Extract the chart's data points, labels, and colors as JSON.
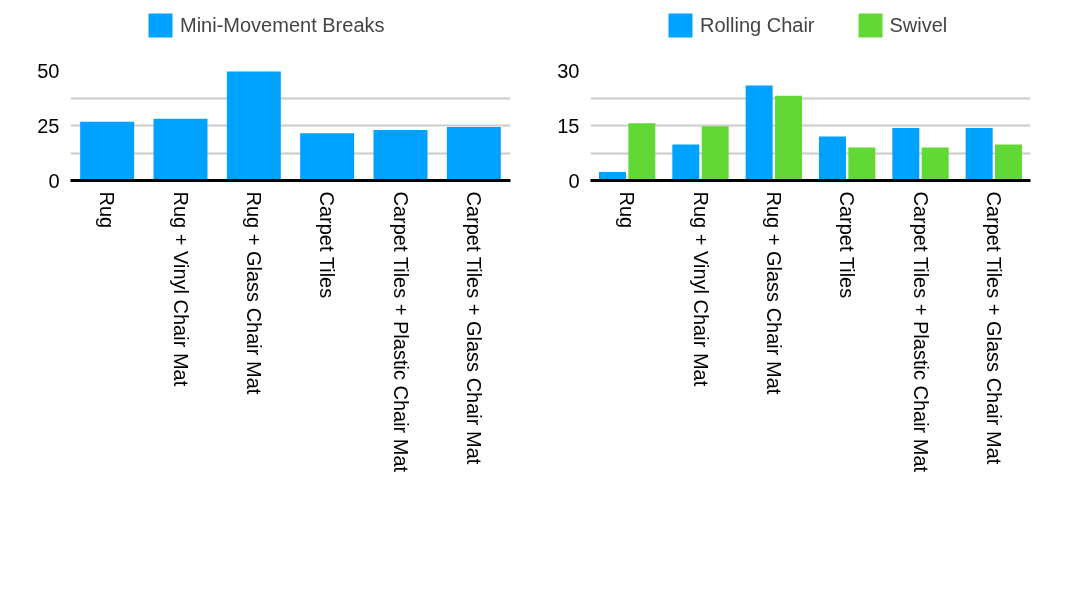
{
  "chart_data": [
    {
      "type": "bar",
      "categories": [
        "Rug",
        "Rug + Vinyl Chair Mat",
        "Rug + Glass Chair Mat",
        "Carpet Tiles",
        "Carpet Tiles + Plastic Chair Mat",
        "Carpet Tiles + Glass Chair Mat"
      ],
      "series": [
        {
          "name": "Mini-Movement Breaks",
          "color": "#00a2ff",
          "values": [
            26.7,
            28.1,
            49.5,
            21.5,
            22.9,
            24.3
          ]
        }
      ],
      "ylim": [
        0,
        50
      ],
      "yticks": [
        0,
        {
          "value": 12.5,
          "label": null
        },
        25,
        {
          "value": 37.5,
          "label": null
        },
        50
      ],
      "grid": "y",
      "legend": "top left"
    },
    {
      "type": "bar",
      "categories": [
        "Rug",
        "Rug + Vinyl Chair Mat",
        "Rug + Glass Chair Mat",
        "Carpet Tiles",
        "Carpet Tiles + Plastic Chair Mat",
        "Carpet Tiles + Glass Chair Mat"
      ],
      "series": [
        {
          "name": "Rolling Chair",
          "color": "#00a2ff",
          "values": [
            2.3,
            9.8,
            25.9,
            12.0,
            14.3,
            14.3
          ]
        },
        {
          "name": "Swivel",
          "color": "#62d836",
          "values": [
            15.6,
            14.8,
            23.1,
            9.0,
            9.0,
            9.8
          ]
        }
      ],
      "ylim": [
        0,
        30
      ],
      "yticks": [
        0,
        {
          "value": 7.5,
          "label": null
        },
        15,
        {
          "value": 22.5,
          "label": null
        },
        30
      ],
      "grid": "y",
      "legend": "top left"
    }
  ]
}
